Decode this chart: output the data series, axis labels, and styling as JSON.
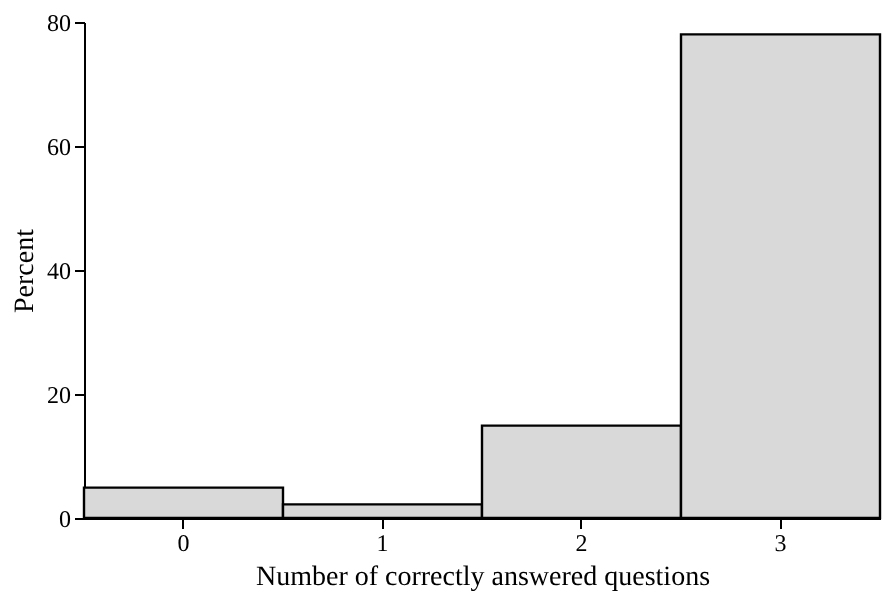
{
  "chart_data": {
    "type": "bar",
    "xlabel": "Number of correctly answered questions",
    "ylabel": "Percent",
    "categories": [
      "0",
      "1",
      "2",
      "3"
    ],
    "values": [
      4.9,
      2.2,
      14.9,
      78
    ],
    "color": "#d9d9d9",
    "ylim": [
      0,
      80
    ],
    "yticks": [
      0,
      20,
      40,
      60,
      80
    ],
    "grid": false
  }
}
